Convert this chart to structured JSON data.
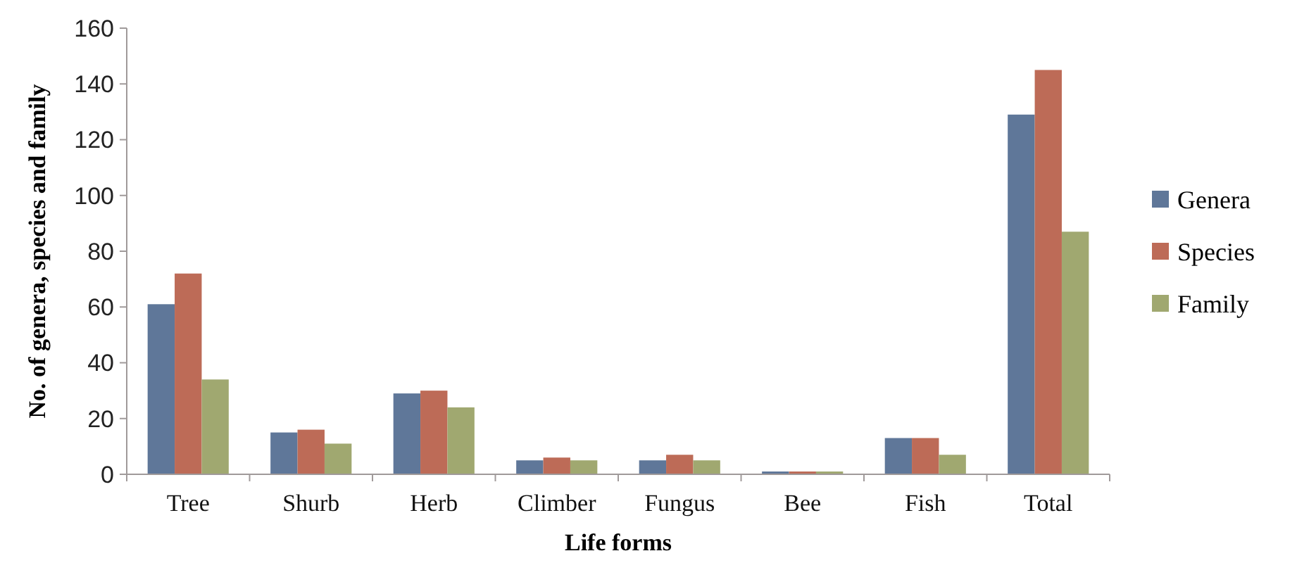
{
  "chart_data": {
    "type": "bar",
    "xlabel": "Life forms",
    "ylabel": "No. of genera, species and family",
    "categories": [
      "Tree",
      "Shurb",
      "Herb",
      "Climber",
      "Fungus",
      "Bee",
      "Fish",
      "Total"
    ],
    "series": [
      {
        "name": "Genera",
        "color": "#5f7799",
        "values": [
          61,
          15,
          29,
          5,
          5,
          1,
          13,
          129
        ]
      },
      {
        "name": "Species",
        "color": "#bd6b57",
        "values": [
          72,
          16,
          30,
          6,
          7,
          1,
          13,
          145
        ]
      },
      {
        "name": "Family",
        "color": "#a0a870",
        "values": [
          34,
          11,
          24,
          5,
          5,
          1,
          7,
          87
        ]
      }
    ],
    "ylim": [
      0,
      160
    ],
    "yticks": [
      0,
      20,
      40,
      60,
      80,
      100,
      120,
      140,
      160
    ],
    "grid": false,
    "legend": "right"
  }
}
